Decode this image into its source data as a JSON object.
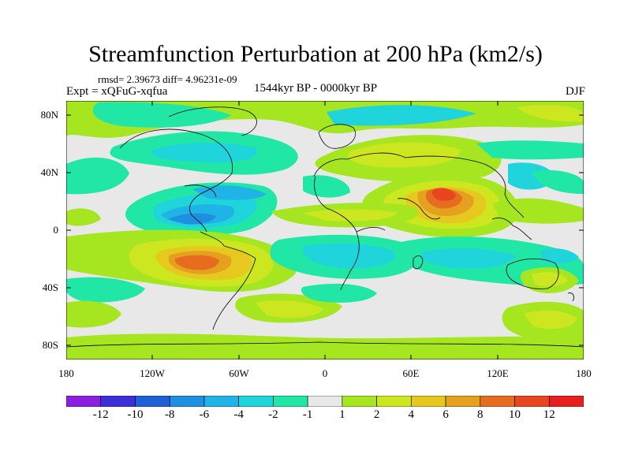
{
  "title": "Streamfunction Perturbation at 200 hPa (km2/s)",
  "stats": "rmsd= 2.39673 diff= 4.96231e-09",
  "experiment": "Expt = xQFuG-xqfua",
  "period": "1544kyr BP - 0000kyr BP",
  "season": "DJF",
  "axes": {
    "y_ticks": [
      "80N",
      "40N",
      "0",
      "40S",
      "80S"
    ],
    "x_ticks": [
      "180",
      "120W",
      "60W",
      "0",
      "60E",
      "120E",
      "180"
    ]
  },
  "colorbar": {
    "labels": [
      "-12",
      "-10",
      "-8",
      "-6",
      "-4",
      "-2",
      "-1",
      "1",
      "2",
      "4",
      "6",
      "8",
      "10",
      "12"
    ],
    "colors": [
      "#8a1fe0",
      "#3c2fd8",
      "#1f5fd8",
      "#1f8fe0",
      "#20b4e6",
      "#20d4dc",
      "#20e6a6",
      "#e8e8e8",
      "#a6e620",
      "#cce61f",
      "#e6c81f",
      "#e6a01f",
      "#e66c1f",
      "#e8461f",
      "#e81f1f"
    ]
  },
  "colors": {
    "background": "#e8e8e8",
    "coastline": "#000000"
  }
}
